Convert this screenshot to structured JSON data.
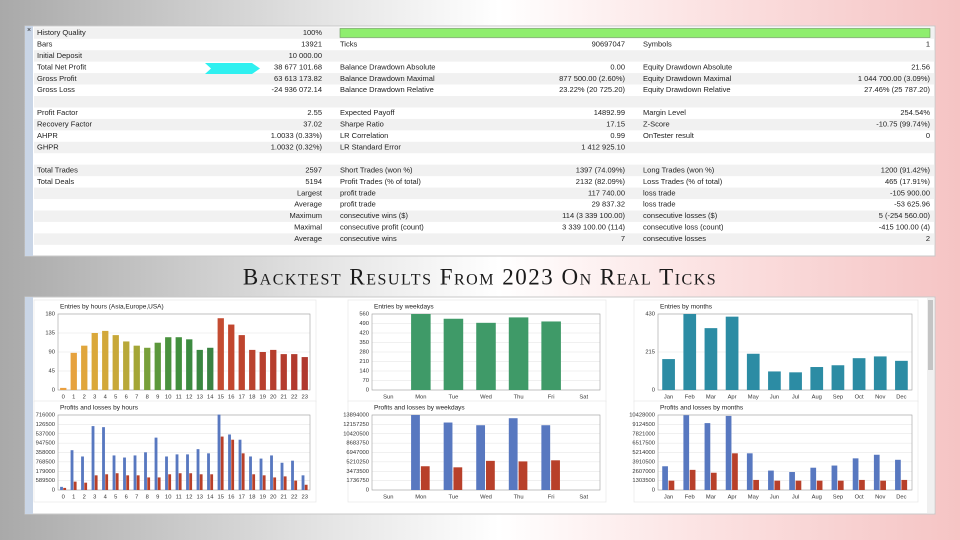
{
  "report": {
    "rows": [
      [
        "History Quality",
        "100%",
        null,
        null,
        null,
        null
      ],
      [
        "Bars",
        "13921",
        "Ticks",
        "90697047",
        "Symbols",
        "1"
      ],
      [
        "Initial Deposit",
        "10 000.00",
        null,
        null,
        null,
        null
      ],
      [
        "Total Net Profit",
        "38 677 101.68",
        "Balance Drawdown Absolute",
        "0.00",
        "Equity Drawdown Absolute",
        "21.56"
      ],
      [
        "Gross Profit",
        "63 613 173.82",
        "Balance Drawdown Maximal",
        "877 500.00 (2.60%)",
        "Equity Drawdown Maximal",
        "1 044 700.00 (3.09%)"
      ],
      [
        "Gross Loss",
        "-24 936 072.14",
        "Balance Drawdown Relative",
        "23.22% (20 725.20)",
        "Equity Drawdown Relative",
        "27.46% (25 787.20)"
      ],
      [
        null,
        null,
        null,
        null,
        null,
        null
      ],
      [
        "Profit Factor",
        "2.55",
        "Expected Payoff",
        "14892.99",
        "Margin Level",
        "254.54%"
      ],
      [
        "Recovery Factor",
        "37.02",
        "Sharpe Ratio",
        "17.15",
        "Z-Score",
        "-10.75 (99.74%)"
      ],
      [
        "AHPR",
        "1.0033 (0.33%)",
        "LR Correlation",
        "0.99",
        "OnTester result",
        "0"
      ],
      [
        "GHPR",
        "1.0032 (0.32%)",
        "LR Standard Error",
        "1 412 925.10",
        null,
        null
      ],
      [
        null,
        null,
        null,
        null,
        null,
        null
      ],
      [
        "Total Trades",
        "2597",
        "Short Trades (won %)",
        "1397 (74.09%)",
        "Long Trades (won %)",
        "1200 (91.42%)"
      ],
      [
        "Total Deals",
        "5194",
        "Profit Trades (% of total)",
        "2132 (82.09%)",
        "Loss Trades (% of total)",
        "465 (17.91%)"
      ],
      [
        null,
        "Largest",
        "profit trade",
        "117 740.00",
        "loss trade",
        "-105 900.00"
      ],
      [
        null,
        "Average",
        "profit trade",
        "29 837.32",
        "loss trade",
        "-53 625.96"
      ],
      [
        null,
        "Maximum",
        "consecutive wins ($)",
        "114 (3 339 100.00)",
        "consecutive losses ($)",
        "5 (-254 560.00)"
      ],
      [
        null,
        "Maximal",
        "consecutive profit (count)",
        "3 339 100.00 (114)",
        "consecutive loss (count)",
        "-415 100.00 (4)"
      ],
      [
        null,
        "Average",
        "consecutive wins",
        "7",
        "consecutive losses",
        "2"
      ]
    ]
  },
  "heading": "Backtest Results From 2023 On Real Ticks",
  "chart_data": [
    {
      "type": "bar",
      "title": "Entries by hours (Asia,Europe,USA)",
      "categories": [
        "0",
        "1",
        "2",
        "3",
        "4",
        "5",
        "6",
        "7",
        "8",
        "9",
        "10",
        "11",
        "12",
        "13",
        "14",
        "15",
        "16",
        "17",
        "18",
        "19",
        "20",
        "21",
        "22",
        "23"
      ],
      "values": [
        5,
        88,
        105,
        135,
        140,
        130,
        115,
        105,
        100,
        112,
        125,
        125,
        120,
        95,
        100,
        170,
        155,
        130,
        95,
        90,
        95,
        85,
        85,
        78
      ],
      "colors": [
        "#eaa040",
        "#e6a23e",
        "#e0a63c",
        "#daa83a",
        "#d2a83a",
        "#c8a838",
        "#b8a838",
        "#a4a636",
        "#78a03a",
        "#5c983c",
        "#4a923e",
        "#42903e",
        "#3c8a40",
        "#3a8640",
        "#3a8242",
        "#c44c32",
        "#c2462e",
        "#be442e",
        "#ba422e",
        "#b8402e",
        "#b63e2e",
        "#b43c2e",
        "#b23a2e",
        "#b0382e"
      ],
      "ylim": [
        0,
        180
      ],
      "yticks": [
        0,
        45,
        90,
        135,
        180
      ],
      "grid": true
    },
    {
      "type": "bar",
      "title": "Entries by weekdays",
      "categories": [
        "Sun",
        "Mon",
        "Tue",
        "Wed",
        "Thu",
        "Fri",
        "Sat"
      ],
      "values": [
        0,
        560,
        525,
        495,
        535,
        505,
        0
      ],
      "color": "#3f9a68",
      "ylim": [
        0,
        560
      ],
      "yticks": [
        0,
        70,
        140,
        210,
        280,
        350,
        420,
        490,
        560
      ],
      "grid": true
    },
    {
      "type": "bar",
      "title": "Entries by months",
      "categories": [
        "Jan",
        "Feb",
        "Mar",
        "Apr",
        "May",
        "Jun",
        "Jul",
        "Aug",
        "Sep",
        "Oct",
        "Nov",
        "Dec"
      ],
      "values": [
        175,
        430,
        350,
        415,
        205,
        105,
        100,
        130,
        140,
        180,
        190,
        165
      ],
      "color": "#2c8ca4",
      "ylim": [
        0,
        430
      ],
      "yticks": [
        0,
        215,
        430
      ],
      "grid": true
    },
    {
      "type": "bar",
      "title": "Profits and losses by hours",
      "categories": [
        "0",
        "1",
        "2",
        "3",
        "4",
        "5",
        "6",
        "7",
        "8",
        "9",
        "10",
        "11",
        "12",
        "13",
        "14",
        "15",
        "16",
        "17",
        "18",
        "19",
        "20",
        "21",
        "22",
        "23"
      ],
      "series": [
        {
          "color": "#5878c0",
          "values": [
            300000,
            3800000,
            3200000,
            6100000,
            6000000,
            3300000,
            3100000,
            3300000,
            3600000,
            5000000,
            3200000,
            3400000,
            3400000,
            3900000,
            3500000,
            7200000,
            5300000,
            4800000,
            3200000,
            3000000,
            3300000,
            2600000,
            2800000,
            1400000
          ]
        },
        {
          "color": "#b8402a",
          "values": [
            200000,
            800000,
            700000,
            1400000,
            1500000,
            1600000,
            1400000,
            1400000,
            1200000,
            1200000,
            1500000,
            1600000,
            1600000,
            1500000,
            1500000,
            5100000,
            4800000,
            3500000,
            1500000,
            1400000,
            1200000,
            1300000,
            900000,
            500000
          ]
        }
      ],
      "ylim": [
        0,
        7160000
      ],
      "yticks": [
        0,
        {
          "value": 895000,
          "label": "589500"
        },
        {
          "value": 1790000,
          "label": "179000"
        },
        {
          "value": 2685000,
          "label": "768500"
        },
        {
          "value": 3580000,
          "label": "358000"
        },
        {
          "value": 4475000,
          "label": "947500"
        },
        {
          "value": 5370000,
          "label": "537000"
        },
        {
          "value": 6265000,
          "label": "126500"
        },
        {
          "value": 7160000,
          "label": "716000"
        }
      ],
      "grid": true
    },
    {
      "type": "bar",
      "title": "Profits and losses by weekdays",
      "categories": [
        "Sun",
        "Mon",
        "Tue",
        "Wed",
        "Thu",
        "Fri",
        "Sat"
      ],
      "series": [
        {
          "color": "#5878c0",
          "values": [
            0,
            13894000,
            12500000,
            12000000,
            13300000,
            12000000,
            0
          ]
        },
        {
          "color": "#b8402a",
          "values": [
            0,
            4400000,
            4200000,
            5400000,
            5300000,
            5500000,
            0
          ]
        }
      ],
      "ylim": [
        0,
        13894000
      ],
      "yticks": [
        0,
        1736750,
        3473500,
        5210250,
        6947000,
        8683750,
        10420500,
        12157250,
        13894000
      ],
      "grid": true
    },
    {
      "type": "bar",
      "title": "Profits and losses by months",
      "categories": [
        "Jan",
        "Feb",
        "Mar",
        "Apr",
        "May",
        "Jun",
        "Jul",
        "Aug",
        "Sep",
        "Oct",
        "Nov",
        "Dec"
      ],
      "series": [
        {
          "color": "#5878c0",
          "values": [
            3300000,
            10400000,
            9300000,
            10300000,
            5100000,
            2700000,
            2500000,
            3100000,
            3400000,
            4400000,
            4900000,
            4200000
          ]
        },
        {
          "color": "#b8402a",
          "values": [
            1300000,
            2800000,
            2400000,
            5100000,
            1400000,
            1300000,
            1300000,
            1300000,
            1300000,
            1400000,
            1300000,
            1400000
          ]
        }
      ],
      "ylim": [
        0,
        10428000
      ],
      "yticks": [
        0,
        1303500,
        2607000,
        3910500,
        5214000,
        6517500,
        7821000,
        9124500,
        10428000
      ],
      "grid": true
    }
  ]
}
